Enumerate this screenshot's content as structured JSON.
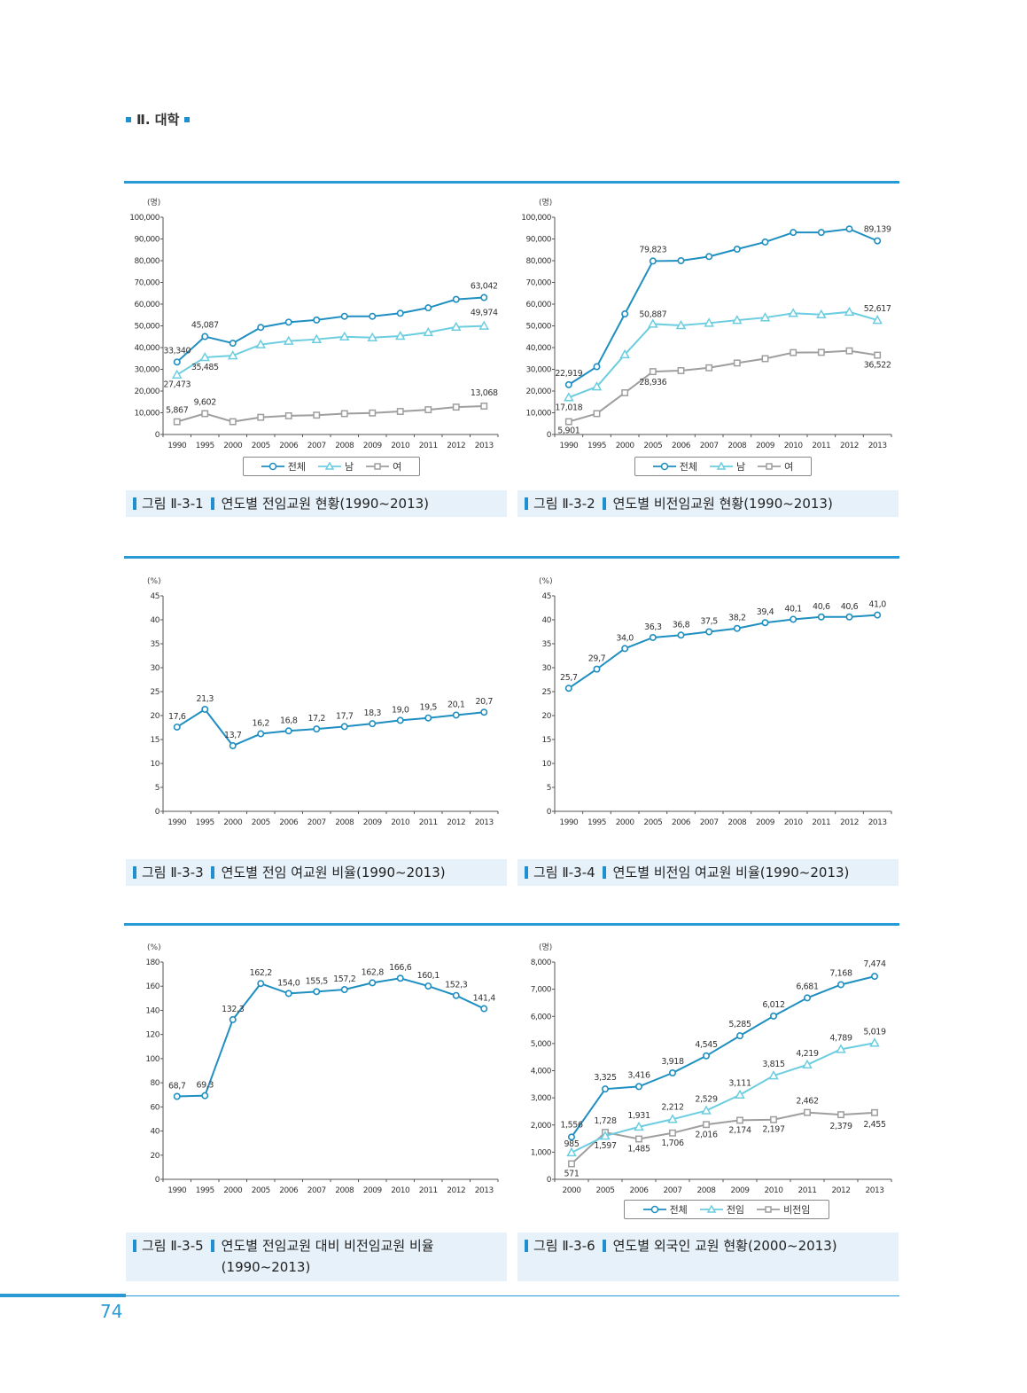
{
  "header": {
    "section": "Ⅱ. 대학"
  },
  "page_number": "74",
  "colors": {
    "accent": "#2a9ad6",
    "total": "#1e8fc0",
    "fulltime": "#6ccde0",
    "women": "#9e9e9e"
  },
  "chart_data": [
    {
      "id": "fig1",
      "type": "line",
      "unit": "(명)",
      "ylim": [
        0,
        100000
      ],
      "yticks": [
        "0",
        "10,000",
        "20,000",
        "30,000",
        "40,000",
        "50,000",
        "60,000",
        "70,000",
        "80,000",
        "90,000",
        "100,000"
      ],
      "categories": [
        "1990",
        "1995",
        "2000",
        "2005",
        "2006",
        "2007",
        "2008",
        "2009",
        "2010",
        "2011",
        "2012",
        "2013"
      ],
      "series": [
        {
          "name": "전체",
          "marker": "circle",
          "values": [
            33340,
            45087,
            42000,
            49300,
            51700,
            52700,
            54400,
            54400,
            55800,
            58300,
            62200,
            63042
          ],
          "labels": [
            "33,340",
            "45,087",
            "",
            "",
            "",
            "",
            "",
            "",
            "",
            "",
            "",
            "63,042"
          ]
        },
        {
          "name": "남",
          "marker": "triangle",
          "values": [
            27473,
            35485,
            36300,
            41400,
            43000,
            43800,
            45000,
            44600,
            45300,
            47000,
            49500,
            49974
          ],
          "labels": [
            "27,473",
            "35,485",
            "",
            "",
            "",
            "",
            "",
            "",
            "",
            "",
            "",
            "49,974"
          ]
        },
        {
          "name": "여",
          "marker": "square",
          "values": [
            5867,
            9602,
            5900,
            7900,
            8600,
            8900,
            9600,
            9900,
            10600,
            11400,
            12600,
            13068
          ],
          "labels": [
            "5,867",
            "9,602",
            "",
            "",
            "",
            "",
            "",
            "",
            "",
            "",
            "",
            "13,068"
          ]
        }
      ],
      "caption": {
        "label": "그림 Ⅱ-3-1",
        "text": "연도별 전임교원 현황(1990~2013)"
      }
    },
    {
      "id": "fig2",
      "type": "line",
      "unit": "(명)",
      "ylim": [
        0,
        100000
      ],
      "yticks": [
        "0",
        "10,000",
        "20,000",
        "30,000",
        "40,000",
        "50,000",
        "60,000",
        "70,000",
        "80,000",
        "90,000",
        "100,000"
      ],
      "categories": [
        "1990",
        "1995",
        "2000",
        "2005",
        "2006",
        "2007",
        "2008",
        "2009",
        "2010",
        "2011",
        "2012",
        "2013"
      ],
      "series": [
        {
          "name": "전체",
          "marker": "circle",
          "values": [
            22919,
            31200,
            55500,
            79823,
            80000,
            81900,
            85300,
            88600,
            93000,
            93000,
            94600,
            89139
          ],
          "labels": [
            "22,919",
            "",
            "",
            "79,823",
            "",
            "",
            "",
            "",
            "",
            "",
            "",
            "89,139"
          ]
        },
        {
          "name": "남",
          "marker": "triangle",
          "values": [
            17018,
            22000,
            36800,
            50887,
            50200,
            51300,
            52600,
            53800,
            55800,
            55200,
            56400,
            52617
          ],
          "labels": [
            "17,018",
            "",
            "",
            "50,887",
            "",
            "",
            "",
            "",
            "",
            "",
            "",
            "52,617"
          ]
        },
        {
          "name": "여",
          "marker": "square",
          "values": [
            5901,
            9600,
            19200,
            28936,
            29400,
            30700,
            32900,
            34900,
            37700,
            37800,
            38500,
            36522
          ],
          "labels": [
            "5,901",
            "",
            "",
            "28,936",
            "",
            "",
            "",
            "",
            "",
            "",
            "",
            "36,522"
          ]
        }
      ],
      "caption": {
        "label": "그림 Ⅱ-3-2",
        "text": "연도별 비전임교원 현황(1990~2013)"
      }
    },
    {
      "id": "fig3",
      "type": "line",
      "unit": "(%)",
      "ylim": [
        0,
        45
      ],
      "yticks": [
        "0",
        "5",
        "10",
        "15",
        "20",
        "25",
        "30",
        "35",
        "40",
        "45"
      ],
      "categories": [
        "1990",
        "1995",
        "2000",
        "2005",
        "2006",
        "2007",
        "2008",
        "2009",
        "2010",
        "2011",
        "2012",
        "2013"
      ],
      "series": [
        {
          "name": "전임 여교원 비율",
          "marker": "circle",
          "values": [
            17.6,
            21.3,
            13.7,
            16.2,
            16.8,
            17.2,
            17.7,
            18.3,
            19.0,
            19.5,
            20.1,
            20.7
          ],
          "labels": [
            "17,6",
            "21,3",
            "13,7",
            "16,2",
            "16,8",
            "17,2",
            "17,7",
            "18,3",
            "19,0",
            "19,5",
            "20,1",
            "20,7"
          ]
        }
      ],
      "caption": {
        "label": "그림 Ⅱ-3-3",
        "text": "연도별 전임 여교원 비율(1990~2013)"
      }
    },
    {
      "id": "fig4",
      "type": "line",
      "unit": "(%)",
      "ylim": [
        0,
        45
      ],
      "yticks": [
        "0",
        "5",
        "10",
        "15",
        "20",
        "25",
        "30",
        "35",
        "40",
        "45"
      ],
      "categories": [
        "1990",
        "1995",
        "2000",
        "2005",
        "2006",
        "2007",
        "2008",
        "2009",
        "2010",
        "2011",
        "2012",
        "2013"
      ],
      "series": [
        {
          "name": "비전임 여교원 비율",
          "marker": "circle",
          "values": [
            25.7,
            29.7,
            34.0,
            36.3,
            36.8,
            37.5,
            38.2,
            39.4,
            40.1,
            40.6,
            40.6,
            41.0
          ],
          "labels": [
            "25,7",
            "29,7",
            "34,0",
            "36,3",
            "36,8",
            "37,5",
            "38,2",
            "39,4",
            "40,1",
            "40,6",
            "40,6",
            "41,0"
          ]
        }
      ],
      "caption": {
        "label": "그림 Ⅱ-3-4",
        "text": "연도별 비전임 여교원 비율(1990~2013)"
      }
    },
    {
      "id": "fig5",
      "type": "line",
      "unit": "(%)",
      "ylim": [
        0,
        180
      ],
      "yticks": [
        "0",
        "20",
        "40",
        "60",
        "80",
        "100",
        "120",
        "140",
        "160",
        "180"
      ],
      "categories": [
        "1990",
        "1995",
        "2000",
        "2005",
        "2006",
        "2007",
        "2008",
        "2009",
        "2010",
        "2011",
        "2012",
        "2013"
      ],
      "series": [
        {
          "name": "비전임교원 비율",
          "marker": "circle",
          "values": [
            68.7,
            69.3,
            132.3,
            162.2,
            154.0,
            155.5,
            157.2,
            162.8,
            166.6,
            160.1,
            152.3,
            141.4
          ],
          "labels": [
            "68,7",
            "69,3",
            "132,3",
            "162,2",
            "154,0",
            "155,5",
            "157,2",
            "162,8",
            "166,6",
            "160,1",
            "152,3",
            "141,4"
          ]
        }
      ],
      "caption": {
        "label": "그림 Ⅱ-3-5",
        "text": "연도별 전임교원 대비 비전임교원 비율 (1990~2013)"
      }
    },
    {
      "id": "fig6",
      "type": "line",
      "unit": "(명)",
      "ylim": [
        0,
        8000
      ],
      "yticks": [
        "0",
        "1,000",
        "2,000",
        "3,000",
        "4,000",
        "5,000",
        "6,000",
        "7,000",
        "8,000"
      ],
      "categories": [
        "2000",
        "2005",
        "2006",
        "2007",
        "2008",
        "2009",
        "2010",
        "2011",
        "2012",
        "2013"
      ],
      "series": [
        {
          "name": "전체",
          "marker": "circle",
          "values": [
            1556,
            3325,
            3416,
            3918,
            4545,
            5285,
            6012,
            6681,
            7168,
            7474
          ],
          "labels": [
            "1,556",
            "3,325",
            "3,416",
            "3,918",
            "4,545",
            "5,285",
            "6,012",
            "6,681",
            "7,168",
            "7,474"
          ]
        },
        {
          "name": "전임",
          "marker": "triangle",
          "values": [
            985,
            1597,
            1931,
            2212,
            2529,
            3111,
            3815,
            4219,
            4789,
            5019
          ],
          "labels": [
            "985",
            "1,597",
            "1,931",
            "2,212",
            "2,529",
            "3,111",
            "3,815",
            "4,219",
            "4,789",
            "5,019"
          ]
        },
        {
          "name": "비전임",
          "marker": "square",
          "values": [
            571,
            1728,
            1485,
            1706,
            2016,
            2174,
            2197,
            2462,
            2379,
            2455
          ],
          "labels": [
            "571",
            "1,728",
            "1,485",
            "1,706",
            "2,016",
            "2,174",
            "2,197",
            "2,462",
            "2,379",
            "2,455"
          ]
        }
      ],
      "caption": {
        "label": "그림 Ⅱ-3-6",
        "text": "연도별 외국인 교원 현황(2000~2013)"
      }
    }
  ]
}
